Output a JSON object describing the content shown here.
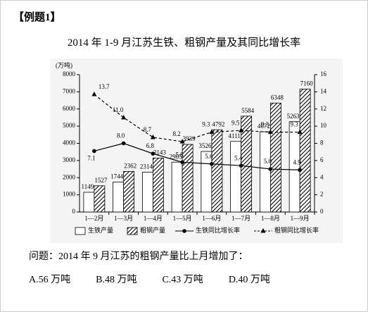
{
  "header": "【例题1】",
  "chart_data": {
    "type": "bar-line",
    "title": "2014 年 1-9 月江苏生铁、粗钢产量及其同比增长率",
    "y_label": "(万吨)",
    "categories": [
      "1—2月",
      "1—3月",
      "1—4月",
      "1—5月",
      "1—6月",
      "1—7月",
      "1—8月",
      "1—9月"
    ],
    "series": [
      {
        "name": "生铁产量",
        "color": "#ffffff",
        "values": [
          1149,
          1744,
          2314,
          2905,
          3526,
          4111,
          4672,
          5263
        ]
      },
      {
        "name": "粗钢产量",
        "color": "#000000",
        "hatch": true,
        "values": [
          1527,
          2362,
          3143,
          3939,
          4792,
          5584,
          6348,
          7160
        ]
      },
      {
        "name": "生铁同比增长率",
        "color": "#000000",
        "axis": "y2",
        "marker": "circle",
        "values": [
          7.1,
          8.0,
          6.8,
          5.8,
          5.6,
          5.4,
          5.0,
          4.9
        ],
        "value_labels": [
          "7.1",
          "8.0",
          "6.8",
          "5.8",
          "5.6",
          "5.4",
          "5.0",
          "4.9"
        ]
      },
      {
        "name": "粗钢同比增长率",
        "color": "#000000",
        "axis": "y2",
        "marker": "triangle",
        "dash": true,
        "values": [
          13.7,
          11.0,
          8.7,
          8.2,
          9.3,
          9.5,
          9.3,
          9.3
        ],
        "value_labels": [
          "13.7",
          "11.0",
          "8.7",
          "8.2",
          "9.3",
          "9.5",
          "9.3",
          "9.3"
        ]
      }
    ],
    "ylim": [
      0,
      8000
    ],
    "yticks": [
      0,
      1000,
      2000,
      3000,
      4000,
      5000,
      6000,
      7000,
      8000
    ],
    "y2lim": [
      0,
      16
    ],
    "y2ticks": [
      0,
      2,
      4,
      6,
      8,
      10,
      12,
      14,
      16
    ]
  },
  "question": "问题：2014 年 9 月江苏的粗钢产量比上月增加了：",
  "options": [
    "A.56 万吨",
    "B.48 万吨",
    "C.43 万吨",
    "D.40 万吨"
  ]
}
